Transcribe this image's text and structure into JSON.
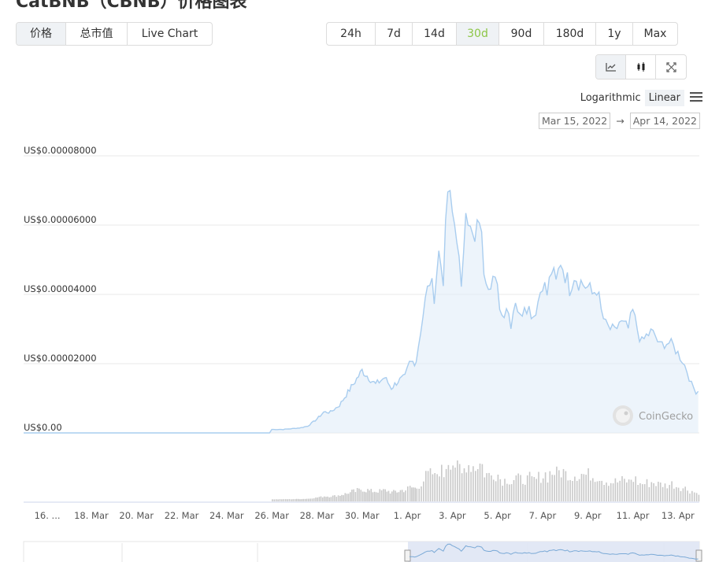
{
  "title": "CatBNB（CBNB）价格图表",
  "tabs": [
    "价格",
    "总市值",
    "Live Chart"
  ],
  "active_tab": 0,
  "ranges": [
    "24h",
    "7d",
    "14d",
    "30d",
    "90d",
    "180d",
    "1y",
    "Max"
  ],
  "active_range": 3,
  "chart_types": [
    "line-chart-icon",
    "candlestick-icon",
    "fullscreen-icon"
  ],
  "scale": {
    "log_label": "Logarithmic",
    "linear_label": "Linear",
    "active": "Linear"
  },
  "date_range": {
    "from": "Mar 15, 2022",
    "arrow": "→",
    "to": "Apr 14, 2022"
  },
  "watermark": "CoinGecko",
  "colors": {
    "line": "#a9cdef",
    "area": "#dbe9f7",
    "volume": "#c9c9c9",
    "accent_green": "#8dc647",
    "navigator_fill": "#dfe6f4"
  },
  "chart_data": {
    "type": "line",
    "x_range": [
      "2022-03-15",
      "2022-04-14"
    ],
    "ylim": [
      0,
      8e-05
    ],
    "yticks": [
      {
        "value": 8e-05,
        "label": "US$0.00008000"
      },
      {
        "value": 6e-05,
        "label": "US$0.00006000"
      },
      {
        "value": 4e-05,
        "label": "US$0.00004000"
      },
      {
        "value": 2e-05,
        "label": "US$0.00002000"
      },
      {
        "value": 0,
        "label": "US$0.00"
      }
    ],
    "xticks": [
      {
        "day": 1.05,
        "label": "16. ..."
      },
      {
        "day": 3,
        "label": "18. Mar"
      },
      {
        "day": 5,
        "label": "20. Mar"
      },
      {
        "day": 7,
        "label": "22. Mar"
      },
      {
        "day": 9,
        "label": "24. Mar"
      },
      {
        "day": 11,
        "label": "26. Mar"
      },
      {
        "day": 13,
        "label": "28. Mar"
      },
      {
        "day": 15,
        "label": "30. Mar"
      },
      {
        "day": 17,
        "label": "1. Apr"
      },
      {
        "day": 19,
        "label": "3. Apr"
      },
      {
        "day": 21,
        "label": "5. Apr"
      },
      {
        "day": 23,
        "label": "7. Apr"
      },
      {
        "day": 25,
        "label": "9. Apr"
      },
      {
        "day": 27,
        "label": "11. Apr"
      },
      {
        "day": 29,
        "label": "13. Apr"
      }
    ],
    "series": [
      {
        "x": [
          0,
          1,
          2,
          3,
          4,
          5,
          6,
          7,
          8,
          9,
          10,
          10.9,
          11,
          11.5,
          12,
          12.3,
          12.6,
          13,
          13.3,
          13.6,
          14,
          14.3,
          14.6,
          15,
          15.3,
          15.6,
          16,
          16.3,
          16.6,
          16.9,
          17.1,
          17.4,
          17.6,
          17.8,
          18,
          18.2,
          18.4,
          18.6,
          18.8,
          19,
          19.2,
          19.4,
          19.6,
          19.8,
          20,
          20.2,
          20.4,
          20.6,
          20.8,
          21,
          21.2,
          21.4,
          21.6,
          21.8,
          22,
          22.2,
          22.4,
          22.6,
          22.8,
          23,
          23.2,
          23.4,
          23.6,
          23.8,
          24,
          24.2,
          24.4,
          24.6,
          24.8,
          25,
          25.2,
          25.4,
          25.6,
          25.8,
          26,
          26.2,
          26.4,
          26.6,
          26.8,
          27,
          27.2,
          27.4,
          27.6,
          27.8,
          28,
          28.2,
          28.4,
          28.6,
          28.8,
          29,
          29.2,
          29.4,
          29.6,
          29.8,
          29.9
        ],
        "values": [
          0,
          0,
          0,
          0,
          0,
          0,
          0,
          0,
          0,
          0,
          0,
          0,
          1e-06,
          1e-06,
          1.3e-06,
          1.5e-06,
          2e-06,
          4e-06,
          6e-06,
          6e-06,
          8e-06,
          1.1e-05,
          1.4e-05,
          1.8e-05,
          1.6e-05,
          1.4e-05,
          1.6e-05,
          1.3e-05,
          1.5e-05,
          1.6e-05,
          2e-05,
          2.1e-05,
          3e-05,
          3.8e-05,
          4.4e-05,
          4e-05,
          5.2e-05,
          4.5e-05,
          7e-05,
          6.3e-05,
          5.8e-05,
          4e-05,
          6.8e-05,
          5.8e-05,
          5.4e-05,
          6.3e-05,
          4.8e-05,
          4.4e-05,
          4.5e-05,
          4.1e-05,
          3.4e-05,
          3.7e-05,
          3.2e-05,
          3.9e-05,
          3.3e-05,
          3.8e-05,
          3.6e-05,
          3.4e-05,
          3.8e-05,
          4.4e-05,
          4e-05,
          4.7e-05,
          4.3e-05,
          5e-05,
          4.6e-05,
          4.2e-05,
          4.6e-05,
          4.4e-05,
          4.3e-05,
          4.2e-05,
          4e-05,
          4.2e-05,
          3.5e-05,
          3.1e-05,
          3e-05,
          2.9e-05,
          3.2e-05,
          3.1e-05,
          3e-05,
          3.5e-05,
          3e-05,
          2.6e-05,
          2.8e-05,
          2.9e-05,
          2.8e-05,
          2.5e-05,
          2.6e-05,
          2.6e-05,
          2.5e-05,
          2.3e-05,
          2.1e-05,
          1.8e-05,
          1.4e-05,
          1.2e-05,
          1.2e-05
        ]
      }
    ],
    "grid": true
  }
}
